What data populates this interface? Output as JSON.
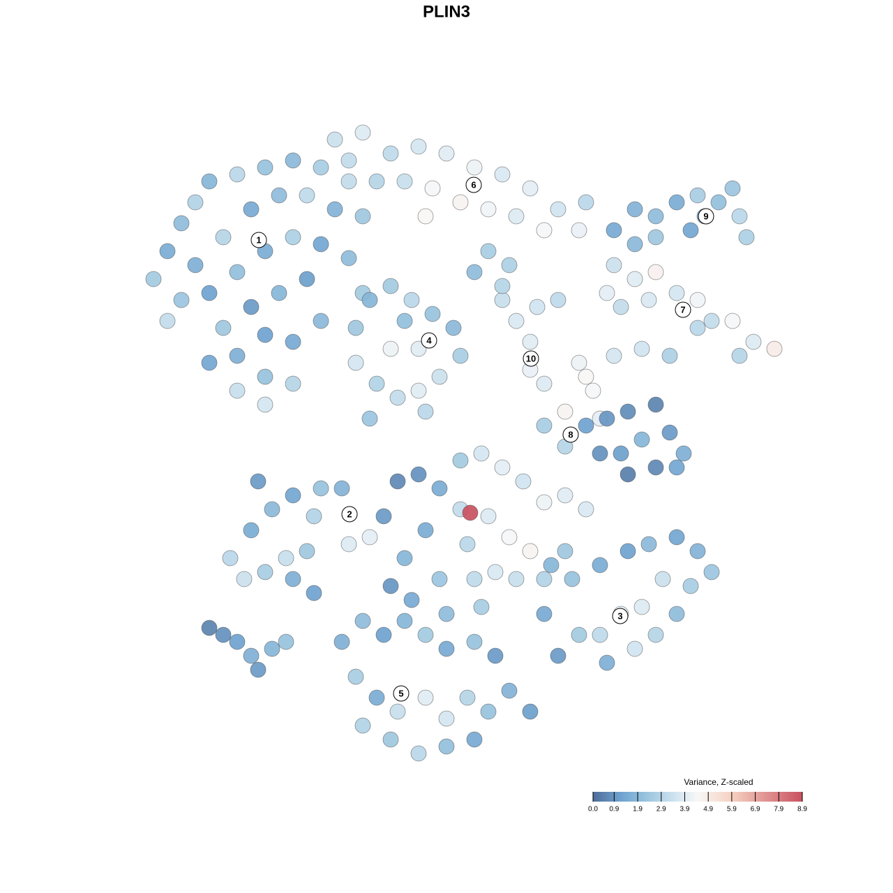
{
  "chart_data": {
    "type": "scatter",
    "title": "PLIN3",
    "xlim": [
      -64,
      64
    ],
    "ylim": [
      -64,
      64
    ],
    "x": [
      -42,
      -40,
      -38,
      -36,
      -34,
      -30,
      -26,
      -22,
      -18,
      -14,
      -12,
      -16,
      -20,
      -24,
      -28,
      -32,
      -36,
      -38,
      -34,
      -30,
      -26,
      -22,
      -18,
      -14,
      -20,
      -24,
      -28,
      -32,
      -30,
      -26,
      -30,
      -26,
      -22,
      -22,
      -18,
      -26,
      -34,
      -40,
      -12,
      -16,
      -12,
      -8,
      -4,
      0,
      4,
      8,
      12,
      16,
      19,
      -6,
      -2,
      2,
      6,
      10,
      -10,
      -14,
      -3,
      14,
      20,
      -13,
      -11,
      -8,
      -5,
      -2,
      1,
      2,
      -1,
      -4,
      -7,
      -10,
      -13,
      -8,
      -4,
      -6,
      -11,
      -3,
      4,
      6,
      8,
      10,
      13,
      16,
      12,
      12,
      14,
      19,
      21,
      22,
      20,
      24,
      8,
      17,
      9,
      24,
      27,
      30,
      33,
      36,
      38,
      41,
      44,
      47,
      42,
      36,
      29,
      25,
      28,
      32,
      23,
      24,
      27,
      30,
      33,
      36,
      39,
      42,
      43,
      41,
      35,
      30,
      27,
      37,
      14,
      17,
      20,
      23,
      26,
      30,
      32,
      34,
      30,
      26,
      25,
      28,
      22,
      33,
      -31,
      -29,
      -26,
      -23,
      -20,
      -22,
      -19,
      -28,
      -25,
      -22,
      -18,
      -15,
      -19,
      -14,
      -11,
      -27,
      -7,
      -4,
      -1,
      2,
      5,
      8,
      11,
      14,
      17,
      20,
      2,
      6,
      9,
      12,
      3,
      -3,
      -6,
      -1,
      4,
      7,
      10,
      14,
      17,
      -5,
      0,
      5,
      -9,
      -8,
      3.4,
      15,
      18,
      22,
      26,
      29,
      33,
      36,
      38,
      35,
      31,
      28,
      25,
      22,
      19,
      16,
      14,
      30,
      33,
      23,
      27,
      -15,
      -12,
      -9,
      -6,
      -3,
      0,
      4,
      7,
      -13,
      -10,
      -7,
      -3,
      0,
      3,
      6,
      9,
      12,
      -8,
      -4,
      0,
      4,
      -12,
      -34,
      -32,
      -30,
      -28,
      -27,
      -25,
      -23
    ],
    "y": [
      24,
      28,
      32,
      35,
      38,
      39,
      40,
      41,
      40,
      38,
      33,
      34,
      36,
      36,
      34,
      30,
      26,
      21,
      22,
      25,
      28,
      30,
      29,
      27,
      24,
      22,
      20,
      17,
      13,
      10,
      8,
      6,
      9,
      15,
      18,
      16,
      12,
      18,
      22,
      44,
      45,
      42,
      43,
      42,
      40,
      39,
      37,
      34,
      31,
      38,
      37,
      35,
      34,
      33,
      38,
      41,
      33,
      31,
      35,
      17,
      21,
      23,
      21,
      19,
      17,
      13,
      10,
      8,
      7,
      9,
      12,
      14,
      14,
      18,
      4,
      5,
      25,
      28,
      21,
      18,
      20,
      21,
      15,
      11,
      9,
      12,
      8,
      4,
      10,
      13,
      23,
      5,
      26,
      26,
      24,
      25,
      22,
      21,
      18,
      18,
      15,
      14,
      13,
      17,
      21,
      20,
      14,
      13,
      22,
      31,
      34,
      33,
      35,
      36,
      35,
      33,
      30,
      37,
      31,
      30,
      29,
      33,
      3,
      0,
      3,
      4,
      5,
      6,
      2,
      -1,
      -3,
      -4,
      -1,
      1,
      -1,
      -3,
      -16,
      -19,
      -18,
      -16,
      -15,
      -19,
      -21,
      -12,
      -9,
      -7,
      -6,
      -6,
      -10,
      -14,
      -13,
      -5,
      -5,
      -4,
      -6,
      -2,
      -1,
      -3,
      -5,
      -8,
      -7,
      -9,
      -9,
      -10,
      -13,
      -15,
      -14,
      -12,
      -16,
      -19,
      -19,
      -18,
      -19,
      -19,
      -15,
      -22,
      -24,
      -23,
      -10,
      -20,
      -9.5,
      -17,
      -19,
      -17,
      -15,
      -14,
      -13,
      -15,
      -18,
      -20,
      -19,
      -23,
      -24,
      -27,
      -27,
      -30,
      -24,
      -27,
      -24,
      -31,
      -29,
      -28,
      -25,
      -27,
      -25,
      -27,
      -29,
      -28,
      -30,
      -33,
      -36,
      -38,
      -36,
      -39,
      -36,
      -38,
      -35,
      -38,
      -42,
      -44,
      -43,
      -42,
      -40,
      -26,
      -27,
      -28,
      -30,
      -32,
      -29,
      -28
    ],
    "values": [
      2.5,
      1.5,
      2.0,
      2.8,
      1.8,
      3.0,
      2.2,
      1.9,
      2.6,
      3.2,
      2.4,
      1.7,
      3.1,
      2.0,
      1.4,
      2.9,
      1.6,
      2.3,
      1.2,
      2.1,
      1.5,
      2.7,
      1.3,
      2.0,
      1.1,
      1.8,
      1.0,
      2.4,
      1.6,
      2.2,
      3.3,
      3.6,
      2.9,
      1.4,
      1.9,
      1.2,
      1.3,
      3.2,
      2.5,
      3.4,
      3.8,
      3.1,
      3.6,
      3.9,
      4.2,
      3.7,
      4.0,
      3.5,
      4.1,
      3.3,
      4.4,
      4.6,
      4.3,
      3.8,
      2.9,
      3.2,
      4.5,
      4.4,
      3.0,
      2.4,
      1.8,
      2.5,
      3.0,
      2.2,
      1.9,
      2.6,
      3.4,
      3.9,
      3.2,
      2.8,
      3.6,
      4.2,
      3.9,
      2.1,
      2.3,
      3.0,
      2.0,
      2.6,
      3.3,
      3.7,
      3.5,
      3.1,
      3.9,
      4.1,
      3.8,
      4.2,
      4.4,
      4.0,
      4.5,
      3.6,
      2.9,
      4.6,
      2.7,
      3.4,
      3.9,
      4.7,
      3.6,
      4.3,
      3.2,
      4.4,
      3.8,
      4.9,
      2.9,
      3.0,
      3.7,
      3.2,
      3.5,
      2.7,
      4.0,
      1.4,
      1.7,
      2.0,
      1.5,
      2.6,
      2.1,
      3.0,
      2.7,
      2.3,
      1.3,
      2.4,
      1.9,
      1.6,
      2.6,
      2.9,
      1.2,
      0.9,
      0.7,
      0.5,
      1.0,
      1.6,
      0.6,
      0.4,
      1.1,
      1.8,
      0.8,
      1.3,
      3.0,
      3.4,
      2.6,
      3.3,
      2.4,
      1.6,
      1.2,
      1.5,
      1.9,
      1.3,
      2.2,
      1.7,
      2.8,
      3.8,
      4.0,
      1.0,
      0.6,
      0.8,
      1.5,
      2.5,
      3.6,
      4.0,
      3.5,
      4.2,
      3.9,
      3.7,
      3.2,
      3.8,
      4.4,
      4.6,
      3.0,
      1.5,
      1.8,
      2.3,
      3.1,
      3.7,
      3.3,
      2.8,
      2.4,
      1.4,
      2.0,
      2.6,
      1.0,
      0.9,
      8.9,
      1.8,
      2.2,
      1.5,
      1.2,
      1.9,
      1.3,
      1.7,
      2.3,
      2.6,
      3.4,
      3.8,
      4.0,
      3.1,
      2.5,
      1.0,
      1.4,
      2.9,
      2.0,
      1.6,
      3.5,
      1.6,
      2.0,
      1.2,
      1.8,
      2.5,
      1.4,
      2.2,
      1.0,
      2.6,
      1.5,
      3.3,
      3.9,
      3.6,
      2.9,
      2.2,
      1.7,
      1.1,
      2.4,
      3.0,
      2.1,
      1.4,
      2.8,
      0.5,
      0.8,
      1.2,
      1.6,
      1.0,
      1.8,
      2.2
    ],
    "clusters": [
      {
        "label": "1",
        "x": -26.9,
        "y": 29.6
      },
      {
        "label": "2",
        "x": -13.9,
        "y": -9.7
      },
      {
        "label": "3",
        "x": 24.9,
        "y": -24.3
      },
      {
        "label": "4",
        "x": -2.5,
        "y": 15.2
      },
      {
        "label": "5",
        "x": -6.5,
        "y": -35.4
      },
      {
        "label": "6",
        "x": 3.9,
        "y": 37.5
      },
      {
        "label": "7",
        "x": 33.9,
        "y": 19.6
      },
      {
        "label": "8",
        "x": 17.8,
        "y": 1.7
      },
      {
        "label": "9",
        "x": 37.2,
        "y": 33.0
      },
      {
        "label": "10",
        "x": 12.1,
        "y": 12.6
      }
    ],
    "colorscale": [
      {
        "value": 0,
        "color": "#4e6d99"
      },
      {
        "value": 1.2,
        "color": "#6fa3d0"
      },
      {
        "value": 2.4,
        "color": "#9fc8e0"
      },
      {
        "value": 3.6,
        "color": "#d4e6f1"
      },
      {
        "value": 4.45,
        "color": "#f7f7f7"
      },
      {
        "value": 5.9,
        "color": "#f6d1c1"
      },
      {
        "value": 8.9,
        "color": "#c9515f"
      }
    ],
    "colorbar": {
      "title": "Variance, Z-scaled",
      "lim": [
        0,
        8.9
      ],
      "ticks": [
        {
          "value": 0,
          "label": "0.0"
        },
        0.9,
        1.9,
        2.9,
        3.9,
        4.9,
        5.9,
        6.9,
        7.9,
        8.9
      ]
    }
  }
}
